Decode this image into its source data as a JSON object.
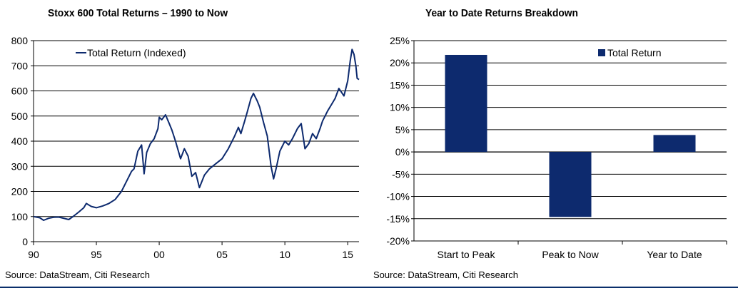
{
  "colors": {
    "series": "#0d2a6e",
    "grid": "#000000",
    "rule": "#0a2f6b"
  },
  "left_panel": {
    "title": "Stoxx 600 Total Returns – 1990 to Now",
    "source": "Source: DataStream, Citi Research"
  },
  "right_panel": {
    "title": "Year to Date Returns Breakdown",
    "source": "Source: DataStream, Citi Research"
  },
  "chart_data": [
    {
      "type": "line",
      "title": "Stoxx 600 Total Returns – 1990 to Now",
      "legend": {
        "entries": [
          "Total Return (Indexed)"
        ],
        "placement": "top-left"
      },
      "xlabel": "",
      "ylabel": "",
      "xlim": [
        1990,
        2015.9
      ],
      "ylim": [
        0,
        800
      ],
      "x_ticks": [
        {
          "value": 1990,
          "label": "90"
        },
        {
          "value": 1995,
          "label": "95"
        },
        {
          "value": 2000,
          "label": "00"
        },
        {
          "value": 2005,
          "label": "05"
        },
        {
          "value": 2010,
          "label": "10"
        },
        {
          "value": 2015,
          "label": "15"
        }
      ],
      "y_ticks": [
        0,
        100,
        200,
        300,
        400,
        500,
        600,
        700,
        800
      ],
      "grid": "horizontal",
      "series": [
        {
          "name": "Total Return (Indexed)",
          "points": [
            [
              1990.0,
              100
            ],
            [
              1990.5,
              95
            ],
            [
              1990.8,
              85
            ],
            [
              1991.2,
              93
            ],
            [
              1991.6,
              97
            ],
            [
              1992.0,
              98
            ],
            [
              1992.5,
              92
            ],
            [
              1992.8,
              88
            ],
            [
              1993.2,
              102
            ],
            [
              1993.6,
              118
            ],
            [
              1994.0,
              135
            ],
            [
              1994.2,
              152
            ],
            [
              1994.6,
              140
            ],
            [
              1995.0,
              135
            ],
            [
              1995.5,
              142
            ],
            [
              1996.0,
              152
            ],
            [
              1996.5,
              168
            ],
            [
              1997.0,
              200
            ],
            [
              1997.5,
              250
            ],
            [
              1997.8,
              280
            ],
            [
              1998.0,
              290
            ],
            [
              1998.3,
              360
            ],
            [
              1998.6,
              385
            ],
            [
              1998.8,
              270
            ],
            [
              1999.0,
              355
            ],
            [
              1999.3,
              390
            ],
            [
              1999.6,
              410
            ],
            [
              1999.9,
              450
            ],
            [
              2000.0,
              495
            ],
            [
              2000.2,
              485
            ],
            [
              2000.5,
              505
            ],
            [
              2000.8,
              470
            ],
            [
              2001.0,
              445
            ],
            [
              2001.3,
              400
            ],
            [
              2001.7,
              330
            ],
            [
              2002.0,
              370
            ],
            [
              2002.3,
              340
            ],
            [
              2002.6,
              260
            ],
            [
              2002.9,
              275
            ],
            [
              2003.2,
              215
            ],
            [
              2003.6,
              265
            ],
            [
              2004.0,
              290
            ],
            [
              2004.5,
              310
            ],
            [
              2005.0,
              330
            ],
            [
              2005.5,
              370
            ],
            [
              2006.0,
              420
            ],
            [
              2006.3,
              455
            ],
            [
              2006.5,
              430
            ],
            [
              2006.8,
              480
            ],
            [
              2007.0,
              515
            ],
            [
              2007.3,
              570
            ],
            [
              2007.5,
              590
            ],
            [
              2007.8,
              560
            ],
            [
              2008.0,
              535
            ],
            [
              2008.3,
              475
            ],
            [
              2008.6,
              420
            ],
            [
              2008.9,
              300
            ],
            [
              2009.1,
              250
            ],
            [
              2009.3,
              290
            ],
            [
              2009.6,
              360
            ],
            [
              2010.0,
              400
            ],
            [
              2010.3,
              385
            ],
            [
              2010.6,
              410
            ],
            [
              2011.0,
              450
            ],
            [
              2011.3,
              470
            ],
            [
              2011.6,
              370
            ],
            [
              2011.9,
              390
            ],
            [
              2012.2,
              430
            ],
            [
              2012.5,
              410
            ],
            [
              2012.8,
              450
            ],
            [
              2013.0,
              480
            ],
            [
              2013.4,
              520
            ],
            [
              2013.7,
              545
            ],
            [
              2014.0,
              570
            ],
            [
              2014.3,
              610
            ],
            [
              2014.7,
              580
            ],
            [
              2015.0,
              640
            ],
            [
              2015.2,
              720
            ],
            [
              2015.35,
              765
            ],
            [
              2015.5,
              745
            ],
            [
              2015.65,
              700
            ],
            [
              2015.75,
              650
            ],
            [
              2015.9,
              645
            ]
          ]
        }
      ]
    },
    {
      "type": "bar",
      "title": "Year to Date Returns Breakdown",
      "legend": {
        "entries": [
          "Total Return"
        ],
        "placement": "top-right"
      },
      "categories": [
        "Start to Peak",
        "Peak to Now",
        "Year to Date"
      ],
      "series": [
        {
          "name": "Total Return",
          "values": [
            21.8,
            -14.6,
            3.8
          ]
        }
      ],
      "unit": "%",
      "ylim": [
        -20,
        25
      ],
      "y_ticks": [
        -20,
        -15,
        -10,
        -5,
        0,
        5,
        10,
        15,
        20,
        25
      ],
      "grid": "horizontal",
      "xlabel": "",
      "ylabel": ""
    }
  ]
}
